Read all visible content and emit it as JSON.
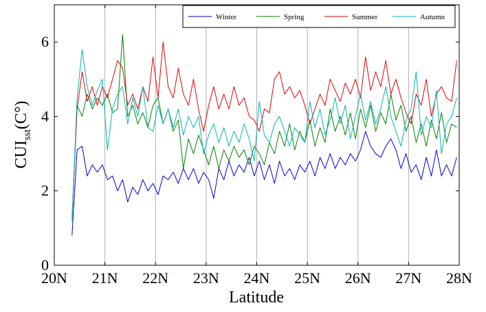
{
  "chart_data": {
    "type": "line",
    "xlabel": "Latitude",
    "ylabel": {
      "main": "CUI",
      "sub": "sst",
      "rest": "(C°)"
    },
    "xlim": [
      20,
      28
    ],
    "ylim": [
      0,
      7
    ],
    "xticks": [
      {
        "value": 20,
        "label": "20N"
      },
      {
        "value": 21,
        "label": "21N"
      },
      {
        "value": 22,
        "label": "22N"
      },
      {
        "value": 23,
        "label": "23N"
      },
      {
        "value": 24,
        "label": "24N"
      },
      {
        "value": 25,
        "label": "25N"
      },
      {
        "value": 26,
        "label": "26N"
      },
      {
        "value": 27,
        "label": "27N"
      },
      {
        "value": 28,
        "label": "28N"
      }
    ],
    "yticks": [
      0,
      2,
      4,
      6
    ],
    "grid": "x",
    "legend": "top-right",
    "x": [
      20.35,
      20.45,
      20.55,
      20.65,
      20.75,
      20.85,
      20.95,
      21.05,
      21.15,
      21.25,
      21.35,
      21.45,
      21.55,
      21.65,
      21.75,
      21.85,
      21.95,
      22.05,
      22.15,
      22.25,
      22.35,
      22.45,
      22.55,
      22.65,
      22.75,
      22.85,
      22.95,
      23.05,
      23.15,
      23.25,
      23.35,
      23.45,
      23.55,
      23.65,
      23.75,
      23.85,
      23.95,
      24.05,
      24.15,
      24.25,
      24.35,
      24.45,
      24.55,
      24.65,
      24.75,
      24.85,
      24.95,
      25.05,
      25.15,
      25.25,
      25.35,
      25.45,
      25.55,
      25.65,
      25.75,
      25.85,
      25.95,
      26.05,
      26.15,
      26.25,
      26.35,
      26.45,
      26.55,
      26.65,
      26.75,
      26.85,
      26.95,
      27.05,
      27.15,
      27.25,
      27.35,
      27.45,
      27.55,
      27.65,
      27.75,
      27.85,
      27.95
    ],
    "series": [
      {
        "name": "Winter",
        "color": "#0000d0",
        "values": [
          0.8,
          3.1,
          3.2,
          2.4,
          2.7,
          2.5,
          2.7,
          2.3,
          2.4,
          2.0,
          2.3,
          1.7,
          2.1,
          1.9,
          2.3,
          2.0,
          2.2,
          1.9,
          2.4,
          2.3,
          2.5,
          2.2,
          2.6,
          2.3,
          2.6,
          2.2,
          2.5,
          2.3,
          1.8,
          2.6,
          2.3,
          2.8,
          2.4,
          2.7,
          2.5,
          2.9,
          2.4,
          2.8,
          2.3,
          2.7,
          2.2,
          2.8,
          2.4,
          2.6,
          2.3,
          2.7,
          2.5,
          2.8,
          2.4,
          2.9,
          2.6,
          3.0,
          2.6,
          2.9,
          2.7,
          3.0,
          2.8,
          3.1,
          3.6,
          3.2,
          3.0,
          2.9,
          3.2,
          3.4,
          3.1,
          2.6,
          3.0,
          2.5,
          2.7,
          2.3,
          2.9,
          2.4,
          3.1,
          2.4,
          2.7,
          2.4,
          2.9
        ]
      },
      {
        "name": "Spring",
        "color": "#008000",
        "values": [
          1.2,
          4.3,
          4.0,
          4.6,
          4.2,
          4.5,
          4.3,
          4.6,
          4.1,
          4.2,
          6.2,
          4.0,
          4.3,
          3.8,
          4.1,
          3.7,
          4.3,
          4.5,
          3.8,
          4.2,
          3.6,
          3.9,
          2.6,
          3.4,
          3.0,
          3.5,
          3.1,
          2.7,
          3.2,
          2.6,
          3.1,
          2.8,
          3.2,
          2.9,
          3.1,
          2.7,
          3.2,
          3.0,
          2.7,
          3.3,
          3.0,
          3.6,
          3.2,
          3.8,
          3.1,
          3.6,
          3.3,
          3.9,
          3.2,
          3.7,
          3.3,
          4.2,
          3.6,
          4.0,
          3.5,
          4.1,
          3.4,
          4.2,
          3.7,
          4.3,
          3.6,
          4.1,
          3.8,
          4.6,
          3.9,
          4.3,
          3.6,
          4.0,
          3.3,
          3.8,
          3.2,
          3.9,
          3.4,
          4.1,
          3.3,
          3.8,
          3.7
        ]
      },
      {
        "name": "Summer",
        "color": "#e00000",
        "values": [
          1.3,
          4.2,
          5.2,
          4.4,
          4.8,
          4.3,
          4.8,
          4.5,
          5.0,
          5.5,
          5.3,
          4.3,
          4.6,
          4.2,
          4.8,
          4.4,
          5.6,
          4.5,
          6.0,
          4.8,
          4.5,
          5.3,
          4.6,
          4.3,
          5.0,
          4.2,
          3.6,
          4.3,
          4.8,
          4.2,
          4.6,
          4.2,
          4.8,
          4.3,
          4.5,
          4.0,
          3.9,
          3.6,
          4.2,
          4.1,
          5.0,
          5.2,
          4.6,
          4.8,
          4.5,
          4.7,
          4.3,
          3.8,
          4.2,
          4.6,
          4.3,
          5.0,
          4.7,
          4.4,
          4.9,
          4.6,
          5.0,
          4.5,
          5.6,
          4.7,
          5.2,
          4.8,
          5.5,
          4.6,
          5.0,
          4.5,
          4.1,
          3.8,
          4.6,
          4.3,
          5.0,
          4.0,
          4.6,
          4.8,
          4.5,
          4.4,
          5.5
        ]
      },
      {
        "name": "Autumn",
        "color": "#00b4b4",
        "values": [
          1.2,
          4.5,
          5.8,
          4.8,
          4.3,
          4.7,
          5.0,
          3.1,
          4.2,
          4.6,
          4.8,
          3.8,
          4.5,
          4.0,
          4.8,
          3.7,
          3.6,
          4.3,
          3.8,
          4.2,
          3.7,
          4.2,
          3.5,
          4.0,
          3.7,
          4.0,
          3.0,
          3.5,
          3.8,
          3.3,
          3.7,
          3.2,
          3.6,
          3.3,
          3.8,
          3.4,
          2.8,
          4.4,
          3.5,
          3.3,
          3.8,
          4.0,
          3.6,
          3.2,
          3.7,
          3.5,
          3.3,
          4.4,
          3.7,
          4.2,
          3.5,
          3.9,
          4.5,
          3.8,
          4.3,
          3.4,
          4.0,
          4.6,
          3.9,
          4.4,
          3.8,
          4.2,
          4.8,
          4.0,
          3.6,
          3.2,
          3.9,
          4.2,
          5.2,
          3.5,
          4.0,
          3.7,
          4.7,
          3.0,
          3.8,
          4.0,
          4.5
        ]
      }
    ]
  }
}
